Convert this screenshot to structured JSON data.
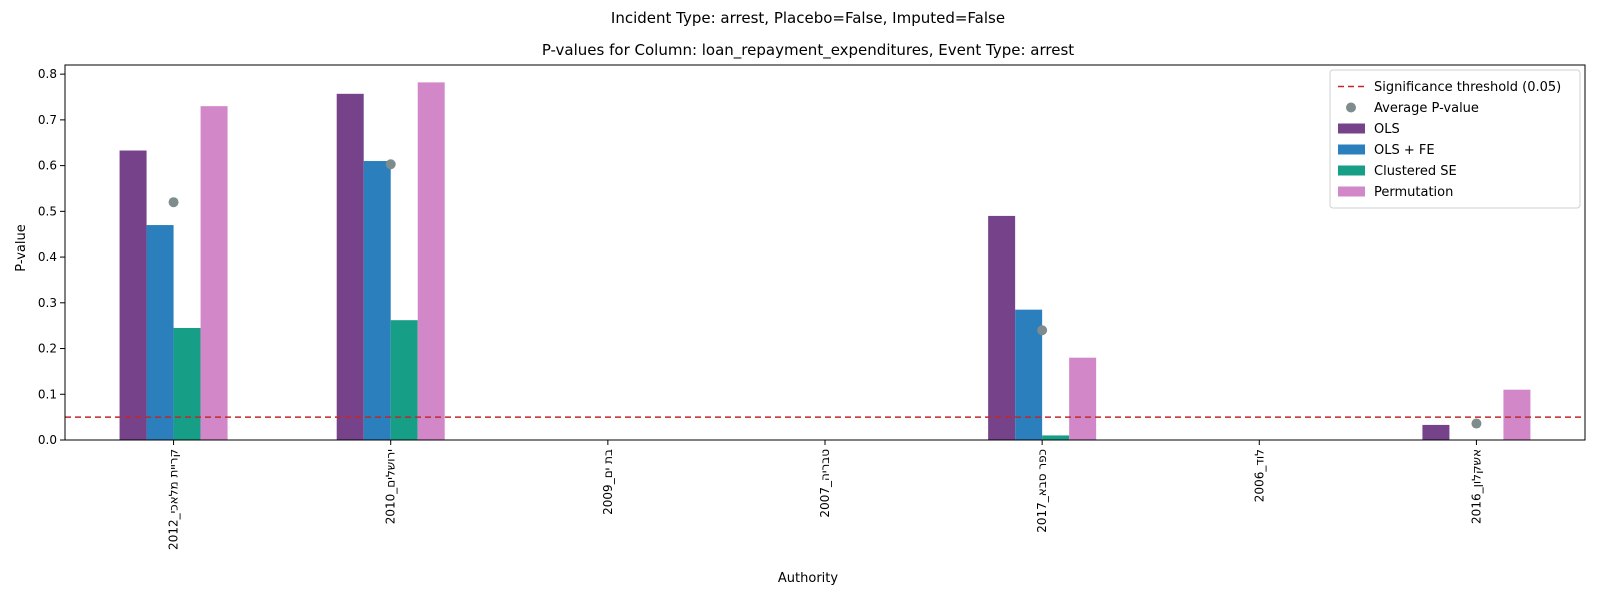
{
  "chart_data": {
    "type": "bar",
    "suptitle": "Incident Type: arrest, Placebo=False, Imputed=False",
    "title": "P-values for Column: loan_repayment_expenditures, Event Type: arrest",
    "xlabel": "Authority",
    "ylabel": "P-value",
    "ylim": [
      0,
      0.82
    ],
    "yticks": [
      "0.0",
      "0.1",
      "0.2",
      "0.3",
      "0.4",
      "0.5",
      "0.6",
      "0.7",
      "0.8"
    ],
    "categories": [
      "קריית מלאכי_2012",
      "ירושלים_2010",
      "בת ים_2009",
      "טבריה_2007",
      "כפר סבא_2017",
      "לוד_2006",
      "אשקלון_2016"
    ],
    "series": [
      {
        "name": "OLS",
        "color": "#76428a",
        "values": [
          0.633,
          0.757,
          null,
          null,
          0.49,
          null,
          0.033
        ]
      },
      {
        "name": "OLS + FE",
        "color": "#2b7fbc",
        "values": [
          0.47,
          0.61,
          null,
          null,
          0.285,
          null,
          null
        ]
      },
      {
        "name": "Clustered SE",
        "color": "#169f86",
        "values": [
          0.245,
          0.262,
          null,
          null,
          0.01,
          null,
          null
        ]
      },
      {
        "name": "Permutation",
        "color": "#d288c8",
        "values": [
          0.73,
          0.782,
          null,
          null,
          0.18,
          null,
          0.11
        ]
      }
    ],
    "average_pvalue": {
      "name": "Average P-value",
      "color": "#7f8c8d",
      "values": [
        0.52,
        0.603,
        null,
        null,
        0.24,
        null,
        0.036
      ]
    },
    "threshold": {
      "name": "Significance threshold (0.05)",
      "value": 0.05,
      "color": "#c0282a"
    },
    "legend_position": "top-right",
    "grid": false
  }
}
